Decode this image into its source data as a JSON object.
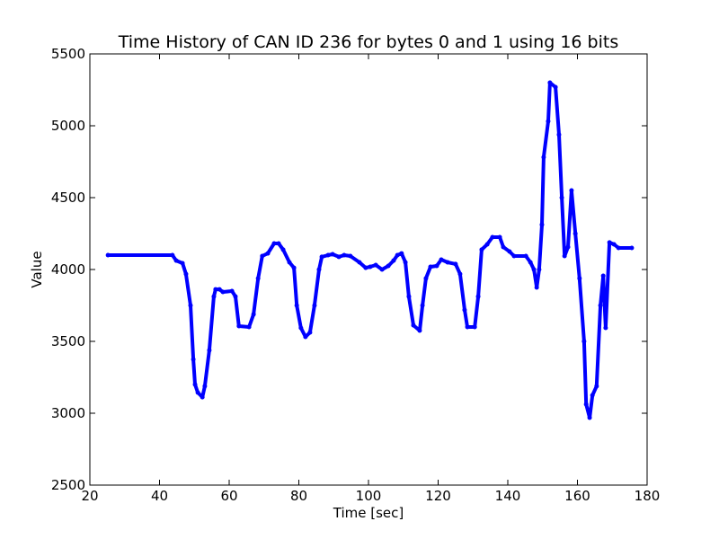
{
  "chart_data": {
    "type": "line",
    "title": "Time History of CAN ID 236 for bytes 0 and 1 using 16 bits",
    "xlabel": "Time [sec]",
    "ylabel": "Value",
    "xlim": [
      20,
      180
    ],
    "ylim": [
      2500,
      5500
    ],
    "xticks": [
      "20",
      "40",
      "60",
      "80",
      "100",
      "120",
      "140",
      "160",
      "180"
    ],
    "yticks": [
      "2500",
      "3000",
      "3500",
      "4000",
      "4500",
      "5000",
      "5500"
    ],
    "grid": false,
    "series": [
      {
        "color": "#0000ff",
        "x": [
          25.2,
          43.7,
          44.8,
          46.6,
          47.6,
          48.9,
          49.7,
          50.2,
          51.0,
          52.3,
          53.0,
          54.3,
          55.6,
          56.1,
          57.2,
          58.2,
          60.8,
          61.8,
          62.8,
          65.7,
          67.0,
          68.3,
          69.5,
          71.1,
          72.9,
          74.2,
          75.5,
          77.3,
          78.6,
          79.4,
          80.6,
          81.9,
          83.2,
          84.5,
          85.8,
          86.6,
          88.4,
          89.7,
          91.5,
          93.0,
          94.8,
          97.4,
          99.2,
          100.5,
          102.1,
          103.9,
          105.7,
          107.2,
          108.3,
          109.5,
          110.6,
          111.6,
          112.9,
          114.7,
          115.5,
          116.5,
          117.8,
          119.6,
          120.9,
          122.7,
          125.0,
          126.3,
          127.6,
          128.4,
          130.5,
          131.5,
          132.5,
          134.1,
          135.6,
          137.7,
          138.7,
          140.5,
          141.8,
          145.2,
          146.5,
          147.5,
          148.3,
          149.0,
          149.8,
          150.3,
          151.6,
          152.1,
          153.7,
          154.7,
          155.5,
          156.3,
          157.3,
          158.3,
          159.4,
          160.6,
          161.9,
          162.5,
          163.5,
          164.3,
          165.5,
          166.6,
          167.4,
          168.1,
          169.2,
          170.5,
          171.8,
          175.6
        ],
        "y": [
          4100,
          4100,
          4062,
          4044,
          3969,
          3750,
          3375,
          3200,
          3144,
          3112,
          3188,
          3438,
          3812,
          3862,
          3862,
          3844,
          3850,
          3812,
          3606,
          3600,
          3688,
          3938,
          4094,
          4112,
          4181,
          4181,
          4138,
          4050,
          4012,
          3750,
          3594,
          3531,
          3562,
          3750,
          4000,
          4088,
          4100,
          4106,
          4088,
          4100,
          4094,
          4050,
          4012,
          4019,
          4031,
          4000,
          4025,
          4062,
          4100,
          4112,
          4050,
          3812,
          3612,
          3575,
          3750,
          3938,
          4019,
          4025,
          4069,
          4050,
          4038,
          3969,
          3719,
          3600,
          3600,
          3812,
          4138,
          4175,
          4225,
          4225,
          4156,
          4125,
          4094,
          4094,
          4050,
          4000,
          3875,
          4000,
          4312,
          4781,
          5031,
          5300,
          5269,
          4938,
          4500,
          4094,
          4156,
          4550,
          4250,
          3938,
          3500,
          3062,
          2969,
          3125,
          3188,
          3750,
          3956,
          3594,
          4188,
          4175,
          4150,
          4150
        ]
      }
    ]
  }
}
